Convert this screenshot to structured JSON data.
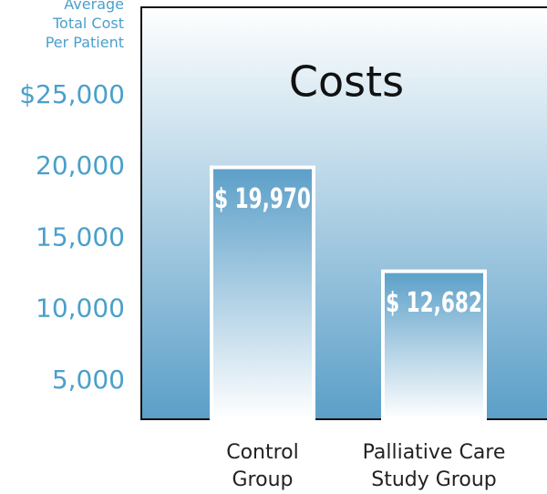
{
  "chart_data": {
    "type": "bar",
    "title": "Costs",
    "ylabel": "Average Total Cost Per Patient",
    "categories": [
      "Control Group",
      "Palliative Care Study Group"
    ],
    "values": [
      19970,
      12682
    ],
    "value_labels": [
      "$ 19,970",
      "$ 12,682"
    ],
    "color": "#5b9fc8",
    "ylim": [
      2300,
      31200
    ],
    "yticks": [
      {
        "value": 5000,
        "label": "5,000"
      },
      {
        "value": 10000,
        "label": "10,000"
      },
      {
        "value": 15000,
        "label": "15,000"
      },
      {
        "value": 20000,
        "label": "20,000"
      },
      {
        "value": 25000,
        "label": "$25,000"
      }
    ],
    "grid": false
  }
}
